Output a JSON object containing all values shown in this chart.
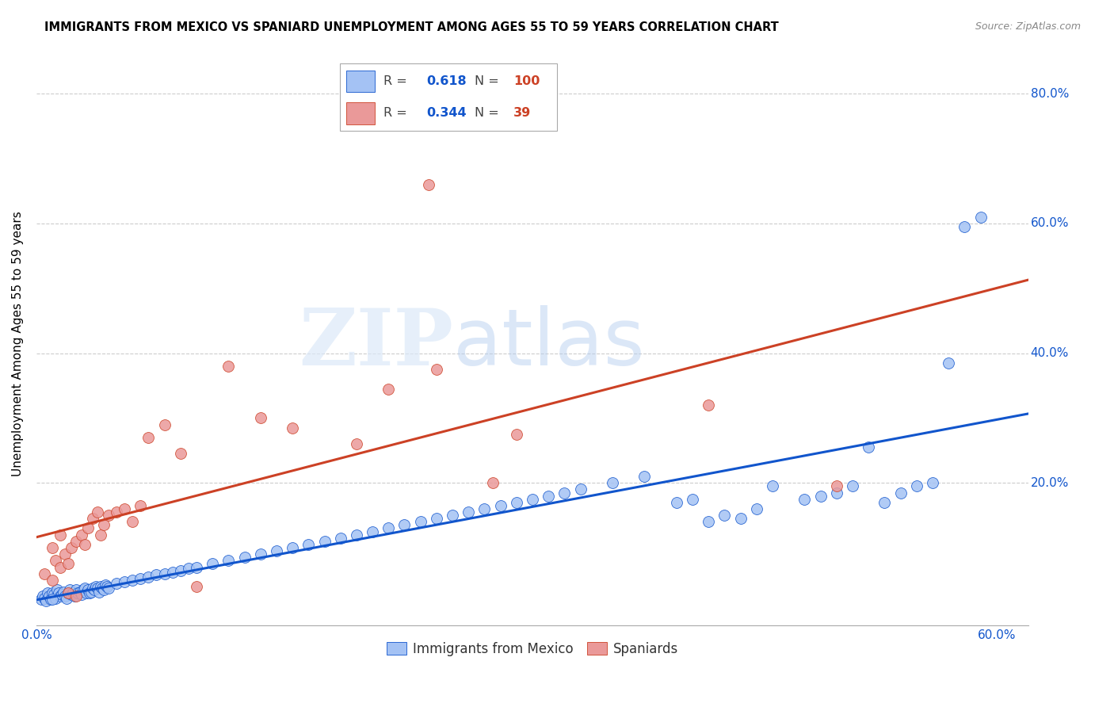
{
  "title": "IMMIGRANTS FROM MEXICO VS SPANIARD UNEMPLOYMENT AMONG AGES 55 TO 59 YEARS CORRELATION CHART",
  "source": "Source: ZipAtlas.com",
  "ylabel": "Unemployment Among Ages 55 to 59 years",
  "xlim": [
    0.0,
    0.62
  ],
  "ylim": [
    -0.02,
    0.85
  ],
  "xticks": [
    0.0,
    0.6
  ],
  "xticklabels": [
    "0.0%",
    "60.0%"
  ],
  "yticks": [
    0.2,
    0.4,
    0.6,
    0.8
  ],
  "yticklabels": [
    "20.0%",
    "40.0%",
    "60.0%",
    "80.0%"
  ],
  "blue_color": "#a4c2f4",
  "pink_color": "#ea9999",
  "blue_line_color": "#1155cc",
  "pink_line_color": "#cc4125",
  "watermark_zip": "ZIP",
  "watermark_atlas": "atlas",
  "legend_R_blue": "0.618",
  "legend_N_blue": "100",
  "legend_R_pink": "0.344",
  "legend_N_pink": "39",
  "blue_scatter_x": [
    0.003,
    0.004,
    0.005,
    0.006,
    0.007,
    0.008,
    0.009,
    0.01,
    0.011,
    0.012,
    0.013,
    0.014,
    0.015,
    0.016,
    0.017,
    0.018,
    0.019,
    0.02,
    0.021,
    0.022,
    0.023,
    0.024,
    0.025,
    0.026,
    0.027,
    0.028,
    0.029,
    0.03,
    0.031,
    0.032,
    0.033,
    0.034,
    0.035,
    0.036,
    0.037,
    0.038,
    0.039,
    0.04,
    0.041,
    0.042,
    0.043,
    0.044,
    0.045,
    0.05,
    0.055,
    0.06,
    0.065,
    0.07,
    0.075,
    0.08,
    0.085,
    0.09,
    0.095,
    0.1,
    0.11,
    0.12,
    0.13,
    0.14,
    0.15,
    0.16,
    0.17,
    0.18,
    0.19,
    0.2,
    0.21,
    0.22,
    0.23,
    0.24,
    0.25,
    0.26,
    0.27,
    0.28,
    0.29,
    0.3,
    0.31,
    0.32,
    0.33,
    0.34,
    0.36,
    0.38,
    0.4,
    0.41,
    0.42,
    0.43,
    0.44,
    0.45,
    0.46,
    0.48,
    0.49,
    0.5,
    0.51,
    0.52,
    0.53,
    0.54,
    0.55,
    0.56,
    0.57,
    0.58,
    0.59,
    0.01
  ],
  "blue_scatter_y": [
    0.02,
    0.025,
    0.022,
    0.018,
    0.03,
    0.025,
    0.02,
    0.03,
    0.028,
    0.022,
    0.035,
    0.03,
    0.025,
    0.028,
    0.032,
    0.025,
    0.022,
    0.03,
    0.035,
    0.028,
    0.03,
    0.025,
    0.035,
    0.03,
    0.032,
    0.028,
    0.035,
    0.038,
    0.03,
    0.035,
    0.03,
    0.032,
    0.038,
    0.035,
    0.04,
    0.038,
    0.032,
    0.04,
    0.038,
    0.035,
    0.042,
    0.04,
    0.038,
    0.045,
    0.048,
    0.05,
    0.052,
    0.055,
    0.058,
    0.06,
    0.062,
    0.065,
    0.068,
    0.07,
    0.075,
    0.08,
    0.085,
    0.09,
    0.095,
    0.1,
    0.105,
    0.11,
    0.115,
    0.12,
    0.125,
    0.13,
    0.135,
    0.14,
    0.145,
    0.15,
    0.155,
    0.16,
    0.165,
    0.17,
    0.175,
    0.18,
    0.185,
    0.19,
    0.2,
    0.21,
    0.17,
    0.175,
    0.14,
    0.15,
    0.145,
    0.16,
    0.195,
    0.175,
    0.18,
    0.185,
    0.195,
    0.255,
    0.17,
    0.185,
    0.195,
    0.2,
    0.385,
    0.595,
    0.61,
    0.02
  ],
  "pink_scatter_x": [
    0.005,
    0.01,
    0.012,
    0.015,
    0.018,
    0.02,
    0.022,
    0.025,
    0.028,
    0.03,
    0.032,
    0.035,
    0.038,
    0.04,
    0.042,
    0.045,
    0.05,
    0.055,
    0.06,
    0.065,
    0.07,
    0.08,
    0.09,
    0.1,
    0.12,
    0.14,
    0.16,
    0.2,
    0.22,
    0.245,
    0.25,
    0.285,
    0.3,
    0.42,
    0.5,
    0.01,
    0.015,
    0.02,
    0.025
  ],
  "pink_scatter_y": [
    0.06,
    0.05,
    0.08,
    0.07,
    0.09,
    0.075,
    0.1,
    0.11,
    0.12,
    0.105,
    0.13,
    0.145,
    0.155,
    0.12,
    0.135,
    0.15,
    0.155,
    0.16,
    0.14,
    0.165,
    0.27,
    0.29,
    0.245,
    0.04,
    0.38,
    0.3,
    0.285,
    0.26,
    0.345,
    0.66,
    0.375,
    0.2,
    0.275,
    0.32,
    0.195,
    0.1,
    0.12,
    0.03,
    0.025
  ]
}
